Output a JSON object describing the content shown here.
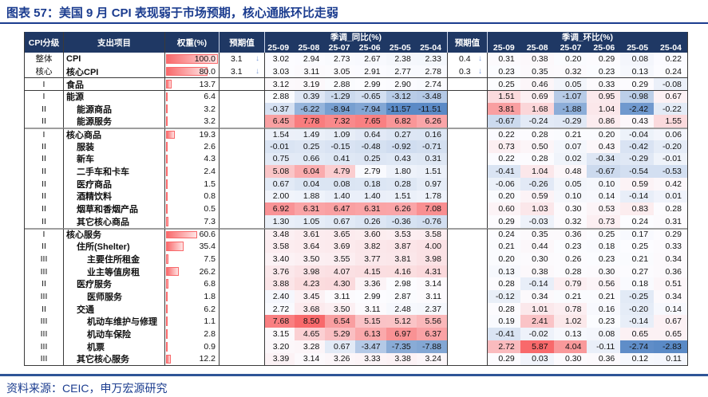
{
  "title": "图表 57：美国 9 月 CPI 表现弱于市场预期，核心通胀环比走弱",
  "source": "资料来源：CEIC，申万宏源研究",
  "colors": {
    "header_bg": "#1F3864",
    "title_text": "#1B3C8F",
    "rule_blue": "#2F5597",
    "scale_min_blue": "#5A8AC6",
    "scale_mid_white": "#FCFCFF",
    "scale_max_red": "#F8696B",
    "databar_red": "#F8696B",
    "arrow_blue": "#7F9FD9",
    "thick_separator": "#9E9E9E"
  },
  "header": {
    "level": "CPI分级",
    "item": "支出项目",
    "weight": "权重(%)",
    "expected_yoy": "预期值",
    "yoy_group": "季调_同比(%)",
    "expected_mom": "预期值",
    "mom_group": "季调_环比(%)"
  },
  "chart_data": {
    "type": "table",
    "title": "图表 57：美国 9 月 CPI 表现弱于市场预期，核心通胀环比走弱",
    "units": "%",
    "value_panels": [
      "季调_同比(%)",
      "季调_环比(%)"
    ],
    "months": [
      "25-09",
      "25-08",
      "25-07",
      "25-06",
      "25-05",
      "25-04"
    ],
    "rows": [
      {
        "level": "整体",
        "item": "CPI",
        "indent": 0,
        "weight": 100.0,
        "expected_yoy": 3.1,
        "expected_mom": 0.4,
        "expected_dir": "down",
        "yoy": [
          3.02,
          2.94,
          2.73,
          2.67,
          2.38,
          2.33
        ],
        "mom": [
          0.31,
          0.38,
          0.2,
          0.29,
          0.08,
          0.22
        ],
        "sep": ""
      },
      {
        "level": "核心",
        "item": "核心CPI",
        "indent": 0,
        "weight": 80.0,
        "expected_yoy": 3.1,
        "expected_mom": 0.3,
        "expected_dir": "down",
        "yoy": [
          3.03,
          3.11,
          3.05,
          2.91,
          2.77,
          2.78
        ],
        "mom": [
          0.23,
          0.35,
          0.32,
          0.23,
          0.13,
          0.24
        ],
        "sep": ""
      },
      {
        "level": "I",
        "item": "食品",
        "indent": 0,
        "weight": 13.7,
        "yoy": [
          3.12,
          3.19,
          2.88,
          2.99,
          2.9,
          2.74
        ],
        "mom": [
          0.25,
          0.46,
          0.05,
          0.33,
          0.29,
          -0.08
        ],
        "sep": "thin"
      },
      {
        "level": "I",
        "item": "能源",
        "indent": 0,
        "weight": 6.4,
        "yoy": [
          2.88,
          0.39,
          -1.29,
          -0.65,
          -3.12,
          -3.48
        ],
        "mom": [
          1.51,
          0.69,
          -1.07,
          0.95,
          -0.98,
          0.67
        ],
        "sep": "thin"
      },
      {
        "level": "II",
        "item": "能源商品",
        "indent": 1,
        "weight": 3.2,
        "yoy": [
          -0.37,
          -6.22,
          -8.94,
          -7.94,
          -11.57,
          -11.51
        ],
        "mom": [
          3.81,
          1.68,
          -1.88,
          1.04,
          -2.42,
          -0.22
        ],
        "sep": ""
      },
      {
        "level": "II",
        "item": "能源服务",
        "indent": 1,
        "weight": 3.2,
        "yoy": [
          6.45,
          7.78,
          7.32,
          7.65,
          6.82,
          6.26
        ],
        "mom": [
          -0.67,
          -0.24,
          -0.29,
          0.86,
          0.43,
          1.55
        ],
        "sep": ""
      },
      {
        "level": "I",
        "item": "核心商品",
        "indent": 0,
        "weight": 19.3,
        "yoy": [
          1.54,
          1.49,
          1.09,
          0.64,
          0.27,
          0.16
        ],
        "mom": [
          0.22,
          0.28,
          0.21,
          0.2,
          -0.04,
          0.06
        ],
        "sep": "thick"
      },
      {
        "level": "II",
        "item": "服装",
        "indent": 1,
        "weight": 2.6,
        "yoy": [
          -0.01,
          0.25,
          -0.15,
          -0.48,
          -0.92,
          -0.71
        ],
        "mom": [
          0.73,
          0.5,
          0.07,
          0.43,
          -0.42,
          -0.2
        ],
        "sep": ""
      },
      {
        "level": "II",
        "item": "新车",
        "indent": 1,
        "weight": 4.3,
        "yoy": [
          0.75,
          0.66,
          0.41,
          0.25,
          0.43,
          0.31
        ],
        "mom": [
          0.22,
          0.28,
          0.02,
          -0.34,
          -0.29,
          -0.01
        ],
        "sep": ""
      },
      {
        "level": "II",
        "item": "二手车和卡车",
        "indent": 1,
        "weight": 2.4,
        "yoy": [
          5.08,
          6.04,
          4.79,
          2.79,
          1.8,
          1.51
        ],
        "mom": [
          -0.41,
          1.04,
          0.48,
          -0.67,
          -0.54,
          -0.53
        ],
        "sep": ""
      },
      {
        "level": "II",
        "item": "医疗商品",
        "indent": 1,
        "weight": 1.5,
        "yoy": [
          0.67,
          0.04,
          0.08,
          0.18,
          0.28,
          0.97
        ],
        "mom": [
          -0.06,
          -0.26,
          0.05,
          0.1,
          0.59,
          0.42
        ],
        "sep": ""
      },
      {
        "level": "II",
        "item": "酒精饮料",
        "indent": 1,
        "weight": 0.8,
        "yoy": [
          2.0,
          1.88,
          1.4,
          1.4,
          1.51,
          1.78
        ],
        "mom": [
          0.2,
          0.59,
          0.1,
          0.14,
          -0.14,
          0.01
        ],
        "sep": ""
      },
      {
        "level": "II",
        "item": "烟草和香烟产品",
        "indent": 1,
        "weight": 0.5,
        "yoy": [
          6.92,
          6.31,
          6.47,
          6.31,
          6.26,
          7.08
        ],
        "mom": [
          0.6,
          1.03,
          0.3,
          0.53,
          0.83,
          0.28
        ],
        "sep": ""
      },
      {
        "level": "II",
        "item": "其它核心商品",
        "indent": 1,
        "weight": 7.3,
        "yoy": [
          1.3,
          1.05,
          0.67,
          0.26,
          -0.36,
          -0.76
        ],
        "mom": [
          0.29,
          -0.03,
          0.32,
          0.73,
          0.24,
          0.31
        ],
        "sep": ""
      },
      {
        "level": "I",
        "item": "核心服务",
        "indent": 0,
        "weight": 60.6,
        "yoy": [
          3.48,
          3.61,
          3.65,
          3.6,
          3.53,
          3.58
        ],
        "mom": [
          0.24,
          0.35,
          0.36,
          0.25,
          0.17,
          0.29
        ],
        "sep": "thick"
      },
      {
        "level": "II",
        "item": "住所(Shelter)",
        "indent": 1,
        "weight": 35.4,
        "yoy": [
          3.58,
          3.64,
          3.69,
          3.82,
          3.87,
          4.0
        ],
        "mom": [
          0.21,
          0.44,
          0.23,
          0.18,
          0.25,
          0.33
        ],
        "sep": ""
      },
      {
        "level": "III",
        "item": "主要住所租金",
        "indent": 2,
        "weight": 7.5,
        "yoy": [
          3.4,
          3.5,
          3.55,
          3.77,
          3.81,
          3.98
        ],
        "mom": [
          0.2,
          0.3,
          0.26,
          0.23,
          0.21,
          0.34
        ],
        "sep": ""
      },
      {
        "level": "III",
        "item": "业主等值房租",
        "indent": 2,
        "weight": 26.2,
        "yoy": [
          3.76,
          3.98,
          4.07,
          4.15,
          4.16,
          4.31
        ],
        "mom": [
          0.13,
          0.38,
          0.28,
          0.3,
          0.27,
          0.36
        ],
        "sep": ""
      },
      {
        "level": "II",
        "item": "医疗服务",
        "indent": 1,
        "weight": 6.8,
        "yoy": [
          3.88,
          4.23,
          4.3,
          3.36,
          2.98,
          3.14
        ],
        "mom": [
          0.28,
          -0.14,
          0.79,
          0.56,
          0.18,
          0.51
        ],
        "sep": ""
      },
      {
        "level": "III",
        "item": "医师服务",
        "indent": 2,
        "weight": 1.8,
        "yoy": [
          2.4,
          3.45,
          3.11,
          2.99,
          2.87,
          3.11
        ],
        "mom": [
          -0.12,
          0.34,
          0.21,
          0.21,
          -0.25,
          0.34
        ],
        "sep": ""
      },
      {
        "level": "II",
        "item": "交通",
        "indent": 1,
        "weight": 6.2,
        "yoy": [
          2.72,
          3.68,
          3.5,
          3.11,
          2.48,
          2.37
        ],
        "mom": [
          0.28,
          1.01,
          0.78,
          0.16,
          -0.2,
          0.14
        ],
        "sep": ""
      },
      {
        "level": "III",
        "item": "机动车维护与修理",
        "indent": 2,
        "weight": 1.1,
        "yoy": [
          7.68,
          8.5,
          6.54,
          5.15,
          5.12,
          5.56
        ],
        "mom": [
          0.19,
          2.41,
          1.02,
          0.23,
          -0.14,
          0.67
        ],
        "sep": ""
      },
      {
        "level": "III",
        "item": "机动车保险",
        "indent": 2,
        "weight": 2.8,
        "yoy": [
          3.15,
          4.65,
          5.29,
          6.13,
          6.97,
          6.37
        ],
        "mom": [
          -0.41,
          -0.02,
          0.13,
          0.08,
          0.65,
          0.65
        ],
        "sep": ""
      },
      {
        "level": "III",
        "item": "机票",
        "indent": 2,
        "weight": 0.9,
        "yoy": [
          3.2,
          3.28,
          0.67,
          -3.47,
          -7.35,
          -7.88
        ],
        "mom": [
          2.72,
          5.87,
          4.04,
          -0.11,
          -2.74,
          -2.83
        ],
        "sep": ""
      },
      {
        "level": "III",
        "item": "其它核心服务",
        "indent": 1,
        "weight": 12.2,
        "yoy": [
          3.39,
          3.14,
          3.26,
          3.33,
          3.38,
          3.24
        ],
        "mom": [
          0.29,
          0.03,
          0.3,
          0.36,
          0.12,
          0.11
        ],
        "sep": ""
      }
    ]
  }
}
